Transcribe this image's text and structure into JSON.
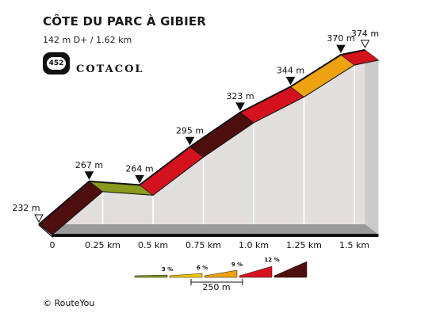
{
  "header": {
    "title": "CÔTE DU PARC À GIBIER",
    "subtitle": "142 m D+ / 1.62 km",
    "badge_number": "452",
    "brand": "COTACOL"
  },
  "footer": {
    "credit": "©  RouteYou"
  },
  "colors": {
    "grade_3": "#8a9a1c",
    "grade_6": "#f5c800",
    "grade_9": "#eea20f",
    "grade_12": "#d3121e",
    "grade_max": "#4e0e0e",
    "wall": "#e3dede",
    "base": "#7a7a7a"
  },
  "chart_data": {
    "type": "area",
    "title": "CÔTE DU PARC À GIBIER",
    "x_unit": "km",
    "y_unit": "m",
    "distance_km": [
      0,
      0.25,
      0.5,
      0.75,
      1.0,
      1.25,
      1.5,
      1.62
    ],
    "elevation_m": [
      232,
      267,
      264,
      295,
      323,
      344,
      370,
      374
    ],
    "elevation_labels": [
      "232 m",
      "267 m",
      "264 m",
      "295 m",
      "323 m",
      "344 m",
      "370 m",
      "374 m"
    ],
    "segment_grades": [
      "max",
      "3",
      "12",
      "max",
      "12",
      "9",
      "12",
      "6"
    ],
    "x_tick_labels": [
      "0",
      "0.25 km",
      "0.5 km",
      "0.75 km",
      "1.0 km",
      "1.25 km",
      "1.5 km"
    ],
    "legend": {
      "grade_labels": [
        "3 %",
        "6 %",
        "9 %",
        "12 %"
      ],
      "scale_label": "250 m"
    }
  }
}
